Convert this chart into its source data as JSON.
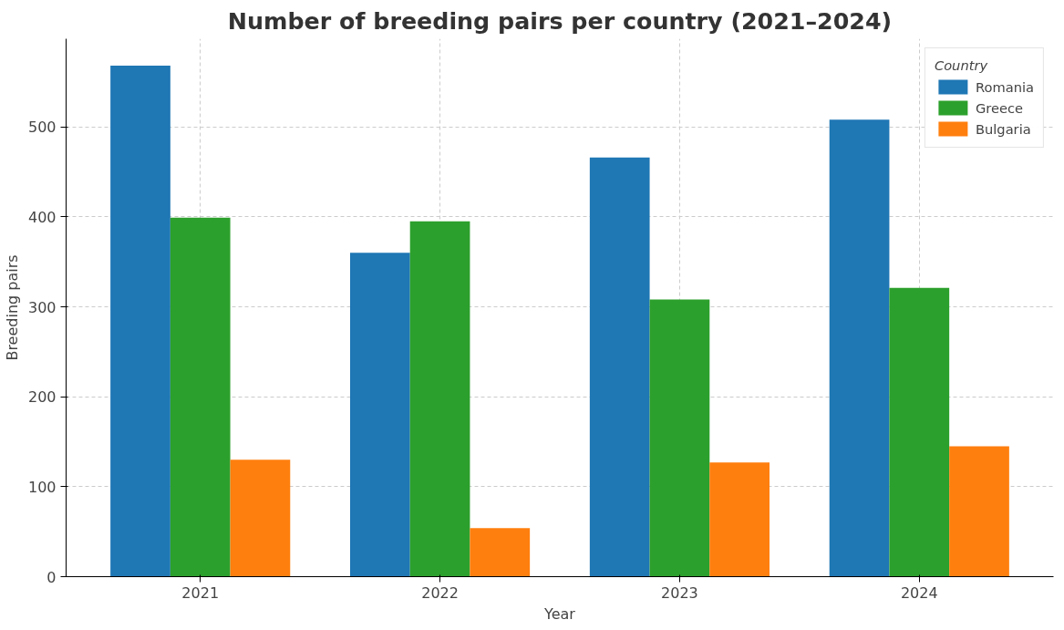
{
  "chart_data": {
    "type": "bar",
    "title": "Number of breeding pairs per country (2021–2024)",
    "xlabel": "Year",
    "ylabel": "Breeding pairs",
    "legend_title": "Country",
    "categories": [
      "2021",
      "2022",
      "2023",
      "2024"
    ],
    "series": [
      {
        "name": "Romania",
        "color": "#1f77b4",
        "values": [
          568,
          360,
          466,
          508
        ]
      },
      {
        "name": "Greece",
        "color": "#2ca02c",
        "values": [
          399,
          395,
          308,
          321
        ]
      },
      {
        "name": "Bulgaria",
        "color": "#ff7f0e",
        "values": [
          130,
          54,
          127,
          145
        ]
      }
    ],
    "ylim": [
      0,
      598
    ],
    "yticks": [
      0,
      100,
      200,
      300,
      400,
      500
    ],
    "grid": true,
    "legend": "top right"
  }
}
